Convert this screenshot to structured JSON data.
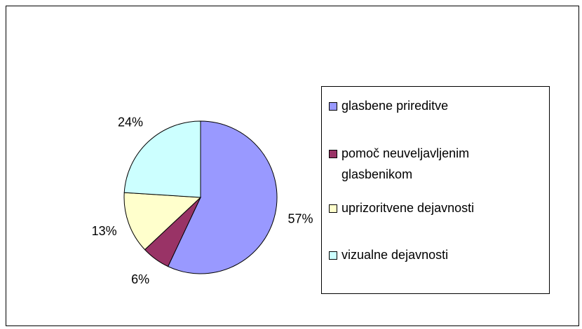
{
  "chart_data": {
    "type": "pie",
    "categories": [
      "glasbene prireditve",
      "pomoč neuveljavljenim glasbenikom",
      "uprizoritvene dejavnosti",
      "vizualne dejavnosti"
    ],
    "values": [
      57,
      6,
      13,
      24
    ],
    "value_labels": [
      "57%",
      "6%",
      "13%",
      "24%"
    ],
    "colors": [
      "#9999ff",
      "#993366",
      "#ffffcc",
      "#ccffff"
    ],
    "legend": "right"
  }
}
